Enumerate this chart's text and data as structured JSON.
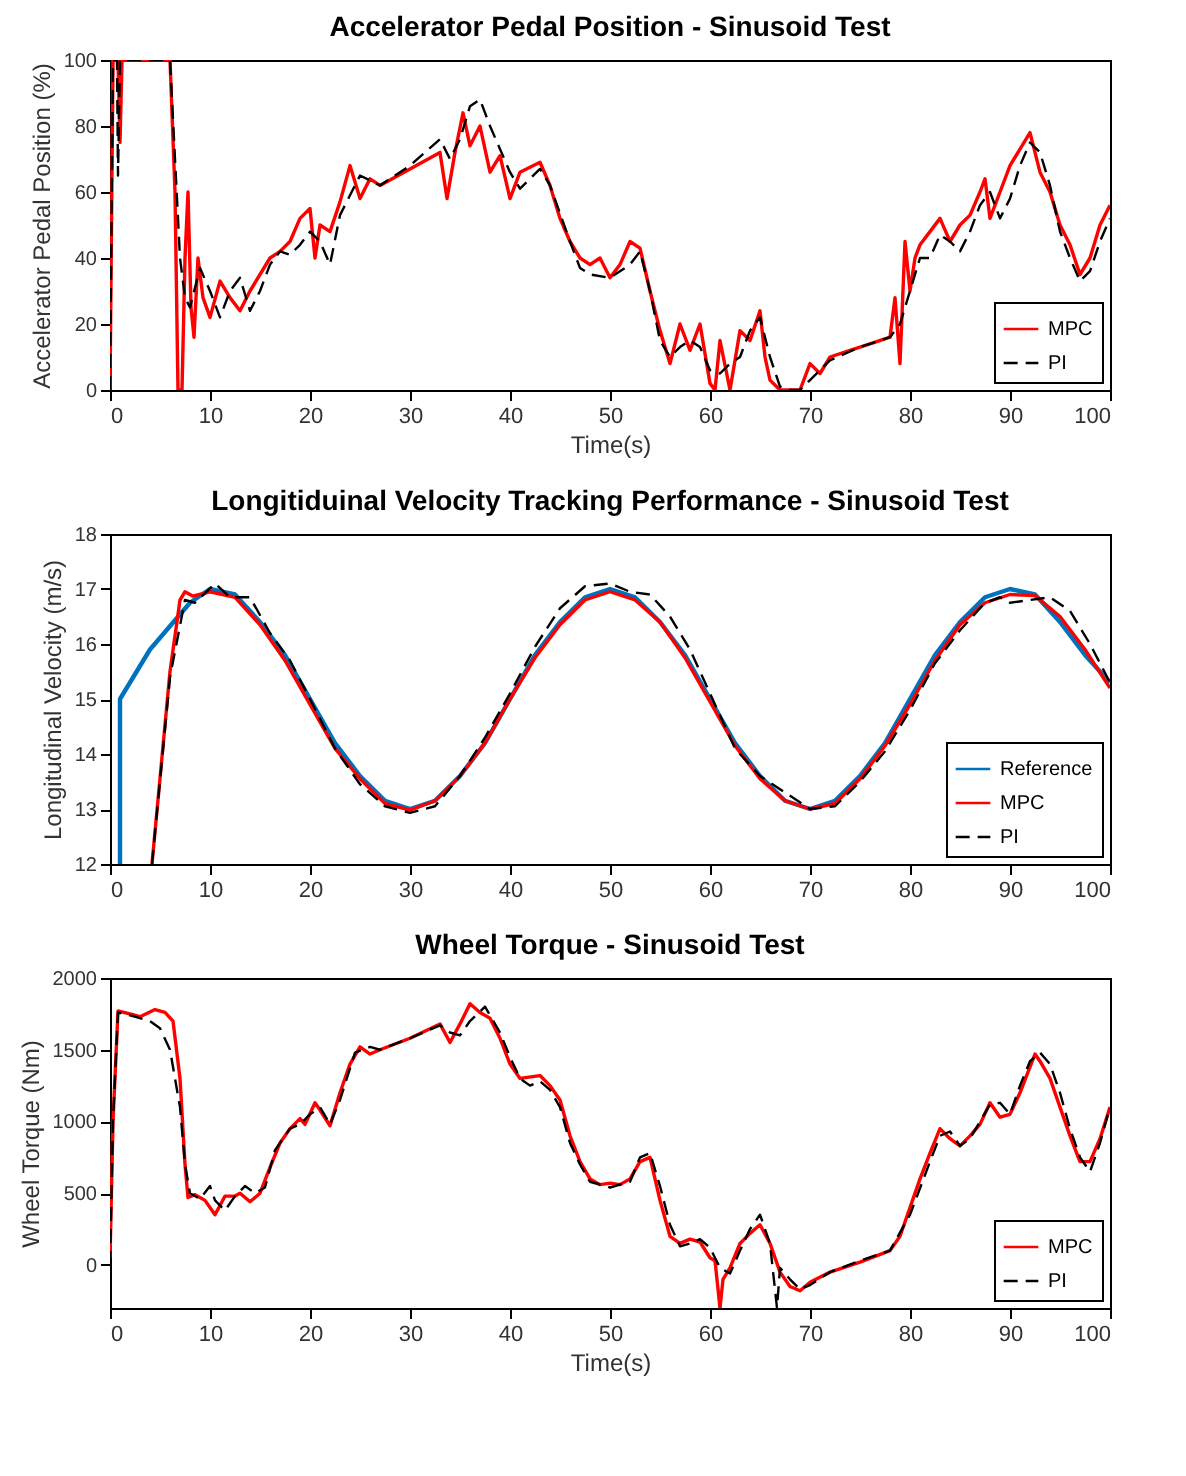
{
  "chart_data": [
    {
      "type": "line",
      "title": "Accelerator Pedal Position - Sinusoid Test",
      "xlabel": "Time(s)",
      "ylabel": "Accelerator Pedal Position (%)",
      "xlim": [
        0,
        100
      ],
      "xticks": [
        0,
        10,
        20,
        30,
        40,
        50,
        60,
        70,
        80,
        90,
        100
      ],
      "ylim": [
        0,
        100
      ],
      "yticks": [
        0,
        20,
        40,
        60,
        80,
        100
      ],
      "legend": "bottom right",
      "grid": false,
      "series": [
        {
          "name": "MPC",
          "color": "#ff0000",
          "line_style": "solid",
          "x": [
            0,
            0.3,
            0.8,
            1,
            1.2,
            6,
            6.5,
            6.8,
            7.2,
            7.5,
            7.8,
            8.1,
            8.4,
            8.8,
            9.3,
            10,
            11,
            12,
            13,
            14,
            15,
            16,
            17,
            18,
            19,
            20,
            20.5,
            21,
            22,
            23,
            24,
            25,
            26,
            27,
            30,
            33,
            33.7,
            34.5,
            35.3,
            36,
            37,
            38,
            39,
            40,
            41,
            43,
            44,
            45,
            46,
            47,
            48,
            49,
            50,
            51,
            52,
            53,
            54,
            55,
            56,
            57,
            58,
            59,
            60,
            60.5,
            61,
            62,
            63,
            64,
            65,
            65.5,
            66,
            67,
            69,
            70,
            71,
            72,
            74,
            76,
            78,
            78.5,
            79,
            79.5,
            80,
            80.5,
            81,
            82,
            83,
            84,
            85,
            86,
            87,
            87.5,
            88,
            89,
            90,
            91,
            92,
            93,
            94,
            95,
            96,
            97,
            98,
            99,
            100
          ],
          "values": [
            0,
            100,
            100,
            75,
            100,
            100,
            60,
            0,
            0,
            40,
            60,
            25,
            16,
            40,
            28,
            22,
            33,
            28,
            24,
            30,
            35,
            40,
            42,
            45,
            52,
            55,
            40,
            50,
            48,
            57,
            68,
            58,
            64,
            62,
            67,
            72,
            58,
            72,
            84,
            74,
            80,
            66,
            71,
            58,
            66,
            69,
            62,
            52,
            45,
            40,
            38,
            40,
            34,
            38,
            45,
            43,
            30,
            18,
            8,
            20,
            12,
            20,
            2,
            0,
            15,
            0,
            18,
            15,
            24,
            10,
            3,
            0,
            0,
            8,
            5,
            10,
            12,
            14,
            16,
            28,
            8,
            45,
            30,
            40,
            44,
            48,
            52,
            45,
            50,
            53,
            60,
            64,
            52,
            60,
            68,
            73,
            78,
            66,
            60,
            50,
            44,
            35,
            40,
            50,
            56
          ]
        },
        {
          "name": "PI",
          "color": "#000000",
          "line_style": "dashed",
          "x": [
            0,
            0.3,
            0.7,
            0.8,
            1,
            6,
            6.5,
            7,
            7.5,
            8,
            9,
            10,
            11,
            12,
            13,
            14,
            15,
            16,
            17,
            18,
            19,
            20,
            21,
            22,
            23,
            25,
            27,
            30,
            33,
            34,
            35,
            36,
            37,
            38,
            40,
            41,
            43,
            44,
            46,
            47,
            48,
            50,
            52,
            53,
            54,
            55,
            56,
            57,
            58,
            59,
            60,
            61,
            62,
            63,
            64,
            65,
            66,
            67,
            68,
            69,
            70,
            72,
            75,
            78,
            79,
            80,
            81,
            82,
            83,
            84,
            85,
            86,
            87,
            88,
            89,
            90,
            91,
            92,
            93,
            94,
            95,
            96,
            97,
            98,
            99,
            100
          ],
          "values": [
            0,
            100,
            100,
            65,
            100,
            100,
            70,
            40,
            28,
            25,
            37,
            30,
            22,
            30,
            34,
            24,
            30,
            38,
            42,
            41,
            44,
            48,
            45,
            38,
            53,
            65,
            62,
            68,
            76,
            70,
            76,
            86,
            88,
            80,
            66,
            61,
            67,
            62,
            45,
            37,
            35,
            34,
            38,
            42,
            30,
            15,
            10,
            13,
            15,
            13,
            6,
            5,
            8,
            10,
            18,
            22,
            10,
            1,
            0,
            0,
            3,
            9,
            13,
            16,
            20,
            30,
            40,
            40,
            47,
            45,
            42,
            48,
            56,
            60,
            52,
            58,
            68,
            75,
            72,
            62,
            48,
            40,
            33,
            36,
            45,
            52
          ]
        }
      ]
    },
    {
      "type": "line",
      "title": "Longitiduinal Velocity Tracking Performance - Sinusoid Test",
      "ylabel": "Longitudinal Velocity (m/s)",
      "xlim": [
        0,
        100
      ],
      "xticks": [
        0,
        10,
        20,
        30,
        40,
        50,
        60,
        70,
        80,
        90,
        100
      ],
      "ylim": [
        12,
        18
      ],
      "yticks": [
        12,
        13,
        14,
        15,
        16,
        17,
        18
      ],
      "legend": "bottom right",
      "grid": false,
      "series": [
        {
          "name": "Reference",
          "color": "#0072bd",
          "line_style": "solid",
          "x": [
            1,
            1,
            4,
            8,
            10,
            12.5,
            15,
            17.5,
            20,
            22.5,
            25,
            27.5,
            30,
            32.5,
            35,
            37.5,
            40,
            42.5,
            45,
            47.5,
            50,
            52.5,
            55,
            57.5,
            60,
            62.5,
            65,
            67.5,
            70,
            72.5,
            75,
            77.5,
            80,
            82.5,
            85,
            87.5,
            90,
            92.5,
            95,
            97.5,
            100
          ],
          "values": [
            12,
            15,
            15.9,
            16.75,
            17,
            16.9,
            16.4,
            15.8,
            15,
            14.2,
            13.6,
            13.15,
            13,
            13.15,
            13.6,
            14.2,
            15,
            15.8,
            16.4,
            16.85,
            17,
            16.85,
            16.4,
            15.8,
            15,
            14.2,
            13.6,
            13.15,
            13,
            13.15,
            13.6,
            14.2,
            15,
            15.8,
            16.4,
            16.85,
            17,
            16.9,
            16.4,
            15.8,
            15.3
          ]
        },
        {
          "name": "MPC",
          "color": "#ff0000",
          "line_style": "solid",
          "x": [
            4.2,
            6,
            7,
            7.5,
            8.3,
            10,
            12.5,
            15,
            17.5,
            20,
            22.5,
            25,
            27.5,
            30,
            32.5,
            35,
            37.5,
            40,
            42.5,
            45,
            47.5,
            50,
            52.5,
            55,
            57.5,
            60,
            62.5,
            65,
            67.5,
            70,
            72.5,
            75,
            77.5,
            80,
            82.5,
            85,
            87.5,
            90,
            92.5,
            95,
            97.5,
            100
          ],
          "values": [
            12,
            15.5,
            16.8,
            16.95,
            16.87,
            16.95,
            16.85,
            16.35,
            15.7,
            14.9,
            14.1,
            13.55,
            13.1,
            12.98,
            13.15,
            13.6,
            14.2,
            15,
            15.75,
            16.35,
            16.8,
            16.95,
            16.8,
            16.4,
            15.75,
            14.95,
            14.15,
            13.55,
            13.15,
            13,
            13.1,
            13.55,
            14.15,
            14.9,
            15.7,
            16.35,
            16.75,
            16.9,
            16.88,
            16.5,
            15.9,
            15.2
          ]
        },
        {
          "name": "PI",
          "color": "#000000",
          "line_style": "dashed",
          "x": [
            4.2,
            6,
            7.5,
            8.5,
            10.5,
            12,
            14,
            16,
            18,
            20,
            22.5,
            25,
            27.5,
            30,
            32.5,
            35,
            37.5,
            40,
            42.5,
            45,
            47.5,
            50,
            52,
            54,
            56,
            58,
            60,
            62.5,
            65,
            67.5,
            70,
            72.5,
            75,
            77.5,
            80,
            82.5,
            85,
            87.5,
            89,
            90,
            92,
            94,
            96,
            98,
            100
          ],
          "values": [
            12,
            15.4,
            16.8,
            16.75,
            17.1,
            16.85,
            16.85,
            16.2,
            15.7,
            15,
            14.1,
            13.45,
            13.05,
            12.93,
            13.05,
            13.6,
            14.3,
            15.1,
            15.95,
            16.65,
            17.05,
            17.1,
            16.95,
            16.9,
            16.5,
            15.9,
            15.1,
            14.1,
            13.6,
            13.3,
            13,
            13.05,
            13.5,
            14.05,
            14.8,
            15.65,
            16.25,
            16.75,
            16.85,
            16.75,
            16.8,
            16.85,
            16.6,
            16,
            15.3
          ]
        }
      ]
    },
    {
      "type": "line",
      "title": "Wheel Torque - Sinusoid Test",
      "xlabel": "Time(s)",
      "ylabel": "Wheel Torque (Nm)",
      "xlim": [
        0,
        100
      ],
      "xticks": [
        0,
        10,
        20,
        30,
        40,
        50,
        60,
        70,
        80,
        90,
        100
      ],
      "ylim": [
        -300,
        2000
      ],
      "yticks": [
        0,
        500,
        1000,
        1500,
        2000
      ],
      "legend": "bottom right",
      "grid": false,
      "series": [
        {
          "name": "MPC",
          "color": "#ff0000",
          "line_style": "solid",
          "x": [
            0,
            0.3,
            0.8,
            2,
            3,
            4.5,
            5.5,
            6.3,
            7,
            7.5,
            7.8,
            8.5,
            9.5,
            10.5,
            11.5,
            12.5,
            13,
            14,
            15,
            16,
            17,
            18,
            19,
            19.5,
            20.5,
            21,
            22,
            23,
            24,
            25,
            26,
            27,
            30,
            33,
            34,
            35,
            36,
            37,
            38,
            39,
            40,
            41,
            43,
            44,
            45,
            46,
            47,
            48,
            49,
            50,
            51,
            52,
            53,
            54,
            55,
            56,
            57,
            58,
            59,
            60,
            60.5,
            61,
            61.3,
            62,
            63,
            64,
            65,
            66,
            67,
            68,
            69,
            70,
            72,
            75,
            78,
            79,
            80,
            81,
            82,
            83,
            84,
            85,
            86,
            87,
            88,
            89,
            90,
            91,
            92,
            92.5,
            93,
            94,
            95,
            96,
            97,
            98,
            99,
            100
          ],
          "values": [
            50,
            1000,
            1770,
            1750,
            1730,
            1780,
            1760,
            1700,
            1300,
            700,
            470,
            490,
            450,
            350,
            480,
            480,
            500,
            440,
            500,
            680,
            850,
            950,
            1020,
            980,
            1130,
            1080,
            970,
            1200,
            1400,
            1520,
            1470,
            1500,
            1580,
            1680,
            1550,
            1680,
            1820,
            1760,
            1720,
            1580,
            1400,
            1300,
            1320,
            1250,
            1150,
            900,
            720,
            600,
            560,
            570,
            560,
            600,
            720,
            750,
            450,
            200,
            150,
            180,
            160,
            50,
            30,
            -300,
            -100,
            -20,
            150,
            220,
            280,
            150,
            -50,
            -150,
            -180,
            -120,
            -50,
            20,
            100,
            200,
            400,
            600,
            780,
            950,
            880,
            830,
            900,
            980,
            1130,
            1030,
            1050,
            1200,
            1380,
            1470,
            1420,
            1300,
            1100,
            900,
            720,
            720,
            880,
            1100
          ]
        },
        {
          "name": "PI",
          "color": "#000000",
          "line_style": "dashed",
          "x": [
            0,
            0.3,
            0.8,
            2,
            4,
            5,
            6,
            7,
            7.5,
            8,
            9,
            10,
            10.5,
            11.5,
            12.5,
            13.5,
            14.5,
            15.5,
            16.5,
            18,
            19,
            20,
            21,
            22,
            23,
            24.5,
            26,
            27,
            30,
            33,
            34,
            35,
            36,
            37.5,
            39,
            40,
            41,
            42,
            43,
            44,
            45,
            46,
            47,
            48,
            50,
            52,
            53,
            54,
            55,
            56,
            57,
            58,
            59,
            60,
            61,
            62,
            63,
            64,
            65,
            66,
            66.7,
            67,
            68,
            69,
            70,
            72,
            75,
            78,
            80,
            82,
            83,
            84,
            85,
            86,
            87,
            88,
            89,
            90,
            91,
            92,
            93,
            94,
            95,
            96,
            97,
            98,
            99,
            100
          ],
          "values": [
            0,
            1000,
            1760,
            1740,
            1700,
            1650,
            1500,
            1100,
            700,
            500,
            460,
            550,
            450,
            380,
            480,
            550,
            500,
            540,
            800,
            950,
            980,
            1050,
            1100,
            980,
            1150,
            1480,
            1520,
            1500,
            1580,
            1670,
            1620,
            1600,
            1700,
            1800,
            1620,
            1450,
            1300,
            1250,
            1280,
            1220,
            1100,
            850,
            700,
            580,
            540,
            580,
            750,
            780,
            550,
            280,
            130,
            150,
            180,
            120,
            -20,
            -60,
            100,
            250,
            350,
            150,
            -300,
            -20,
            -100,
            -170,
            -140,
            -50,
            30,
            100,
            350,
            720,
            900,
            930,
            830,
            880,
            1000,
            1120,
            1130,
            1050,
            1250,
            1420,
            1480,
            1400,
            1200,
            950,
            750,
            650,
            850,
            1100
          ]
        }
      ]
    }
  ]
}
